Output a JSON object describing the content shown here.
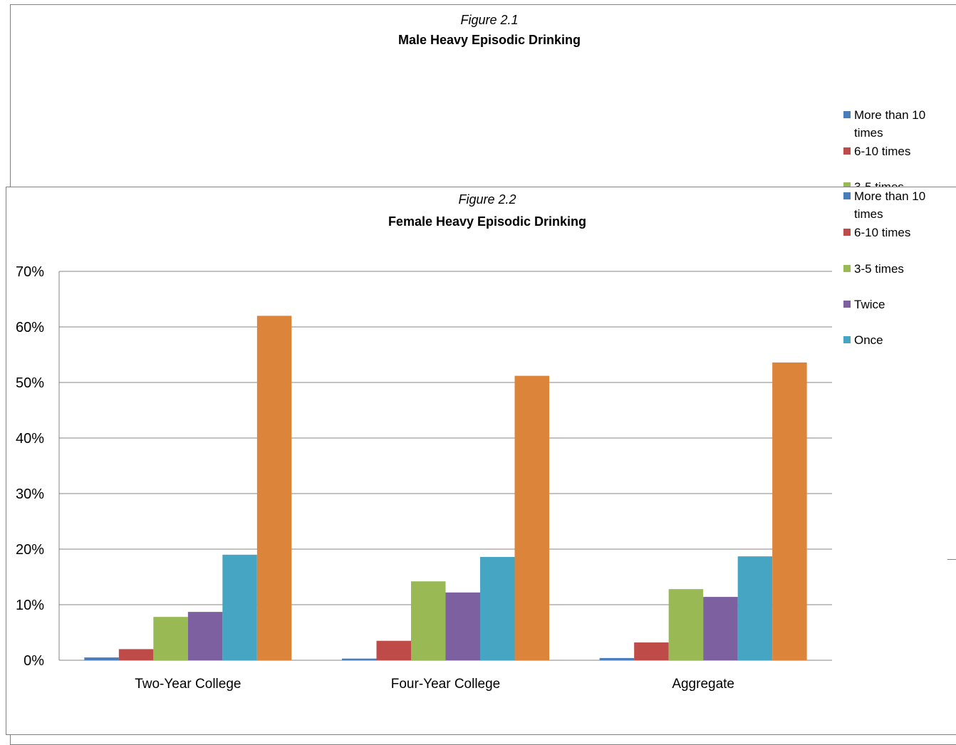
{
  "figures": [
    {
      "id": "figure-2-1",
      "figure_label": "Figure 2.1",
      "title": "Male Heavy Episodic Drinking",
      "partially_hidden": true,
      "visible_y_ticks": [
        "70%",
        "60%"
      ],
      "legend": [
        "More than 10 times",
        "6-10 times",
        "3-5 times"
      ],
      "visible_bar": {
        "value": 65,
        "color": "#dd843b"
      }
    },
    {
      "id": "figure-2-2",
      "figure_label": "Figure 2.2",
      "title": "Female Heavy Episodic Drinking"
    }
  ],
  "chart_data": {
    "type": "bar",
    "title": "Female Heavy Episodic Drinking",
    "subtitle": "Figure 2.2",
    "xlabel": "",
    "ylabel": "",
    "ylim": [
      0,
      70
    ],
    "y_ticks": [
      0,
      10,
      20,
      30,
      40,
      50,
      60,
      70
    ],
    "y_tick_format": "percent",
    "grid": true,
    "legend_position": "right",
    "categories": [
      "Two-Year College",
      "Four-Year College",
      "Aggregate"
    ],
    "series": [
      {
        "name": "More than 10 times",
        "color": "#4a7ebb",
        "values": [
          0.5,
          0.3,
          0.4
        ]
      },
      {
        "name": "6-10 times",
        "color": "#be4b48",
        "values": [
          2.0,
          3.5,
          3.2
        ]
      },
      {
        "name": "3-5 times",
        "color": "#98b954",
        "values": [
          7.8,
          14.2,
          12.8
        ]
      },
      {
        "name": "Twice",
        "color": "#7d60a0",
        "values": [
          8.7,
          12.2,
          11.4
        ]
      },
      {
        "name": "Once",
        "color": "#46a5c2",
        "values": [
          19.0,
          18.6,
          18.7
        ]
      },
      {
        "name": "",
        "color": "#dd843b",
        "values": [
          62.0,
          51.2,
          53.6
        ]
      }
    ]
  }
}
